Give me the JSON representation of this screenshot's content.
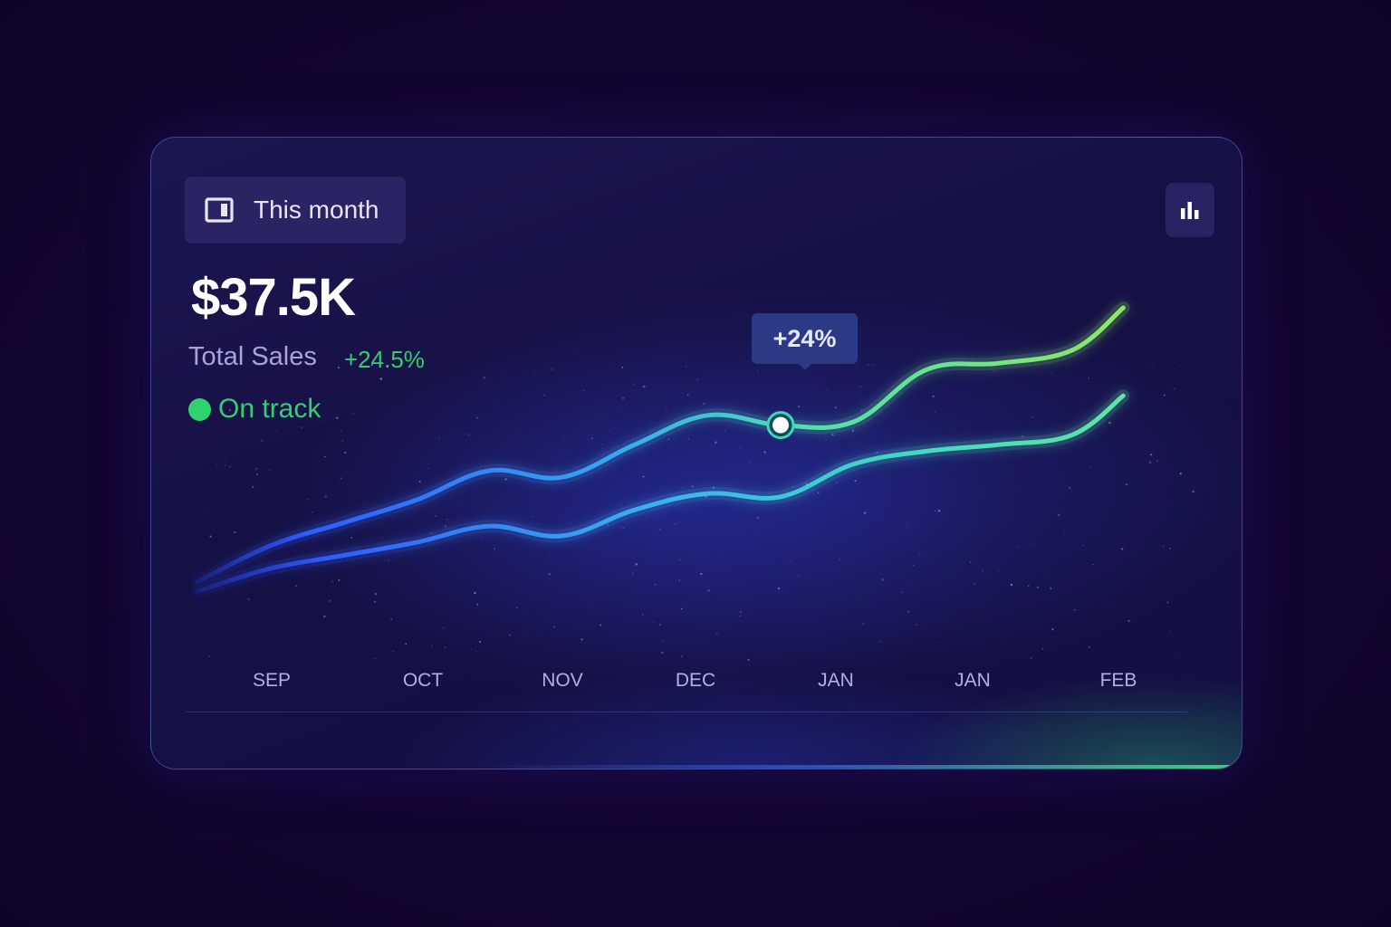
{
  "card": {
    "period_button": {
      "label": "This month",
      "icon": "calendar-icon"
    },
    "chart_toggle": {
      "icon": "bar-chart-icon"
    },
    "total": {
      "value": "$37.5K",
      "label": "Total Sales",
      "change": "+24.5%"
    },
    "status": {
      "label": "On track",
      "color": "#2fd26e"
    },
    "tooltip": {
      "label": "+24%"
    }
  },
  "colors": {
    "background": "#130532",
    "line_start": "#2f5cff",
    "line_mid": "#38c8e8",
    "line_end": "#8be86a",
    "positive": "#33cf6f"
  },
  "chart_data": {
    "type": "line",
    "title": "",
    "xlabel": "",
    "ylabel": "",
    "categories": [
      "SEP",
      "OCT",
      "NOV",
      "DEC",
      "JAN",
      "JAN",
      "FEB"
    ],
    "x": [
      0,
      0.5,
      1,
      1.5,
      2,
      2.5,
      3,
      3.5,
      4,
      4.5,
      5,
      5.5,
      6,
      6.35
    ],
    "ylim": [
      0,
      100
    ],
    "grid": false,
    "series": [
      {
        "values": [
          11,
          22,
          29,
          36,
          45,
          43,
          53,
          62,
          59,
          60,
          76,
          78,
          82,
          95
        ],
        "highlight_index": 8
      },
      {
        "values": [
          8,
          15,
          19,
          23,
          28,
          25,
          33,
          38,
          37,
          47,
          51,
          53,
          56,
          68
        ]
      }
    ]
  }
}
